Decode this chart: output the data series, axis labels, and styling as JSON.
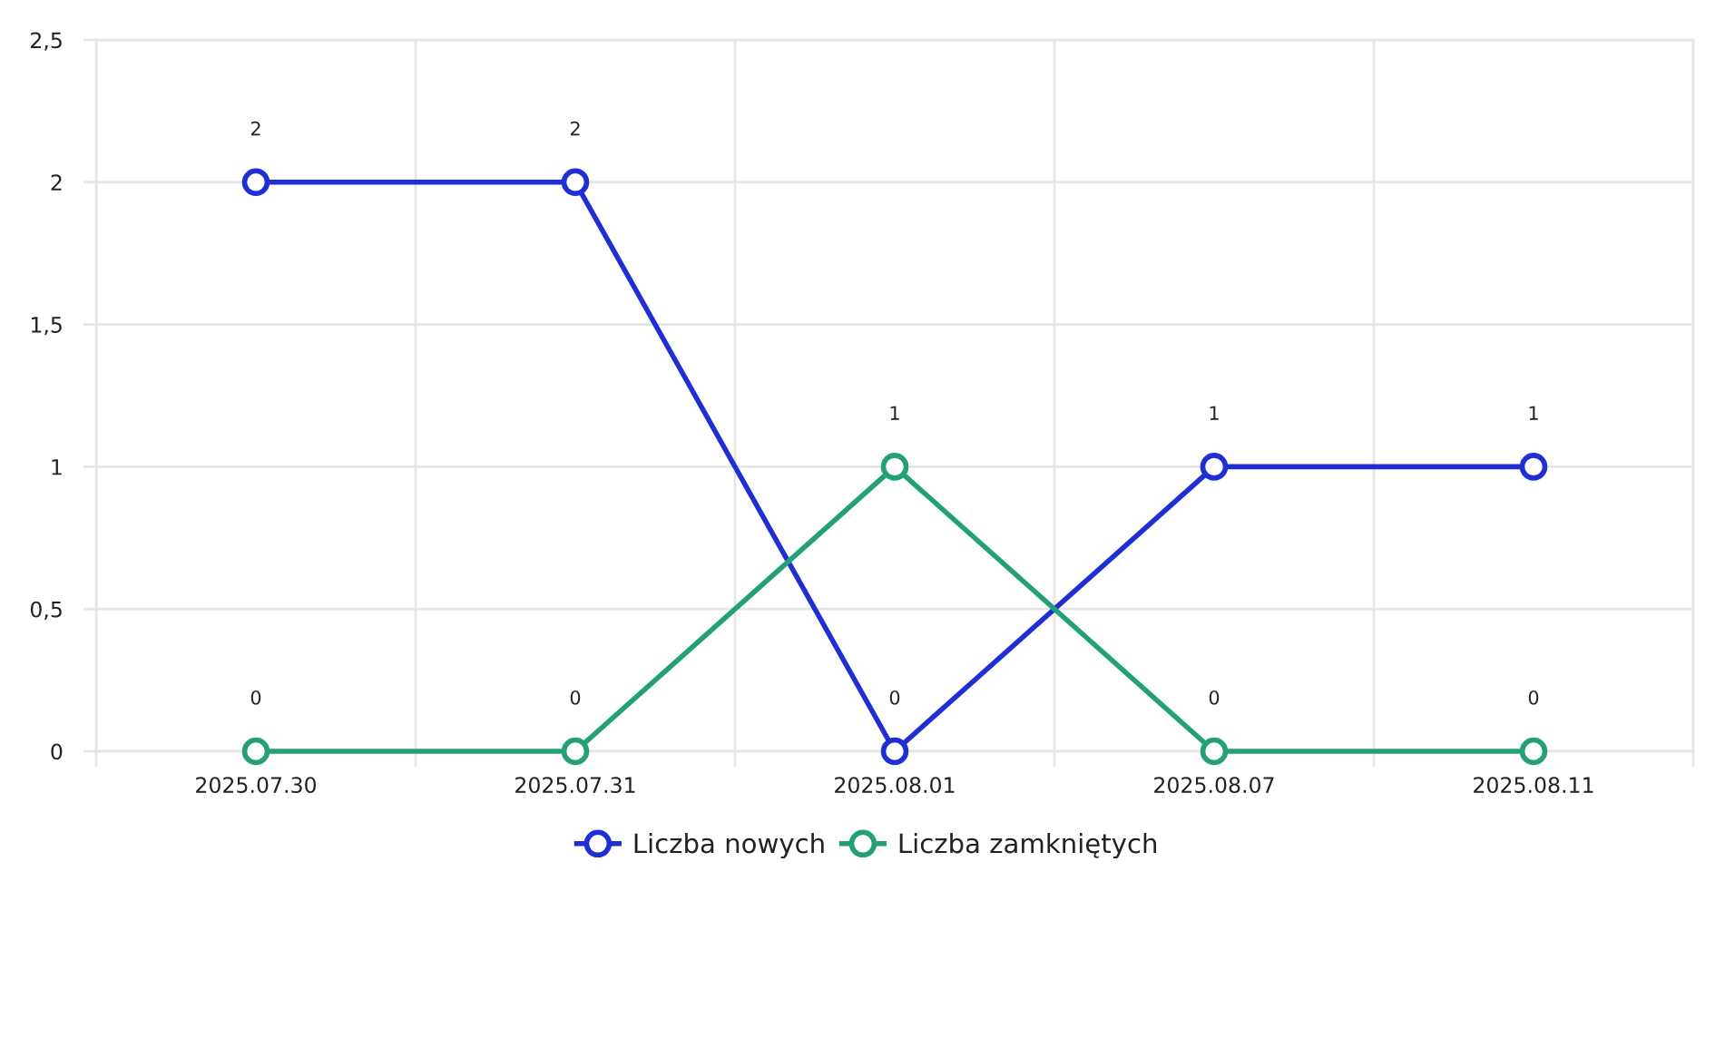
{
  "chart_data": {
    "type": "line",
    "categories": [
      "2025.07.30",
      "2025.07.31",
      "2025.08.01",
      "2025.08.07",
      "2025.08.11"
    ],
    "series": [
      {
        "name": "Liczba nowych",
        "color": "#1f2fd4",
        "values": [
          2,
          2,
          0,
          1,
          1
        ]
      },
      {
        "name": "Liczba zamkniętych",
        "color": "#23a07a",
        "values": [
          0,
          0,
          1,
          0,
          0
        ]
      }
    ],
    "ylim": [
      0,
      2.5
    ],
    "yticks": [
      0,
      {
        "value": 0.5,
        "label": "0,5"
      },
      1,
      {
        "value": 1.5,
        "label": "1,5"
      },
      2,
      {
        "value": 2.5,
        "label": "2,5"
      }
    ],
    "grid": true,
    "legend": "bottom",
    "marker": "circle",
    "line_style": "solid",
    "data_labels": true
  }
}
